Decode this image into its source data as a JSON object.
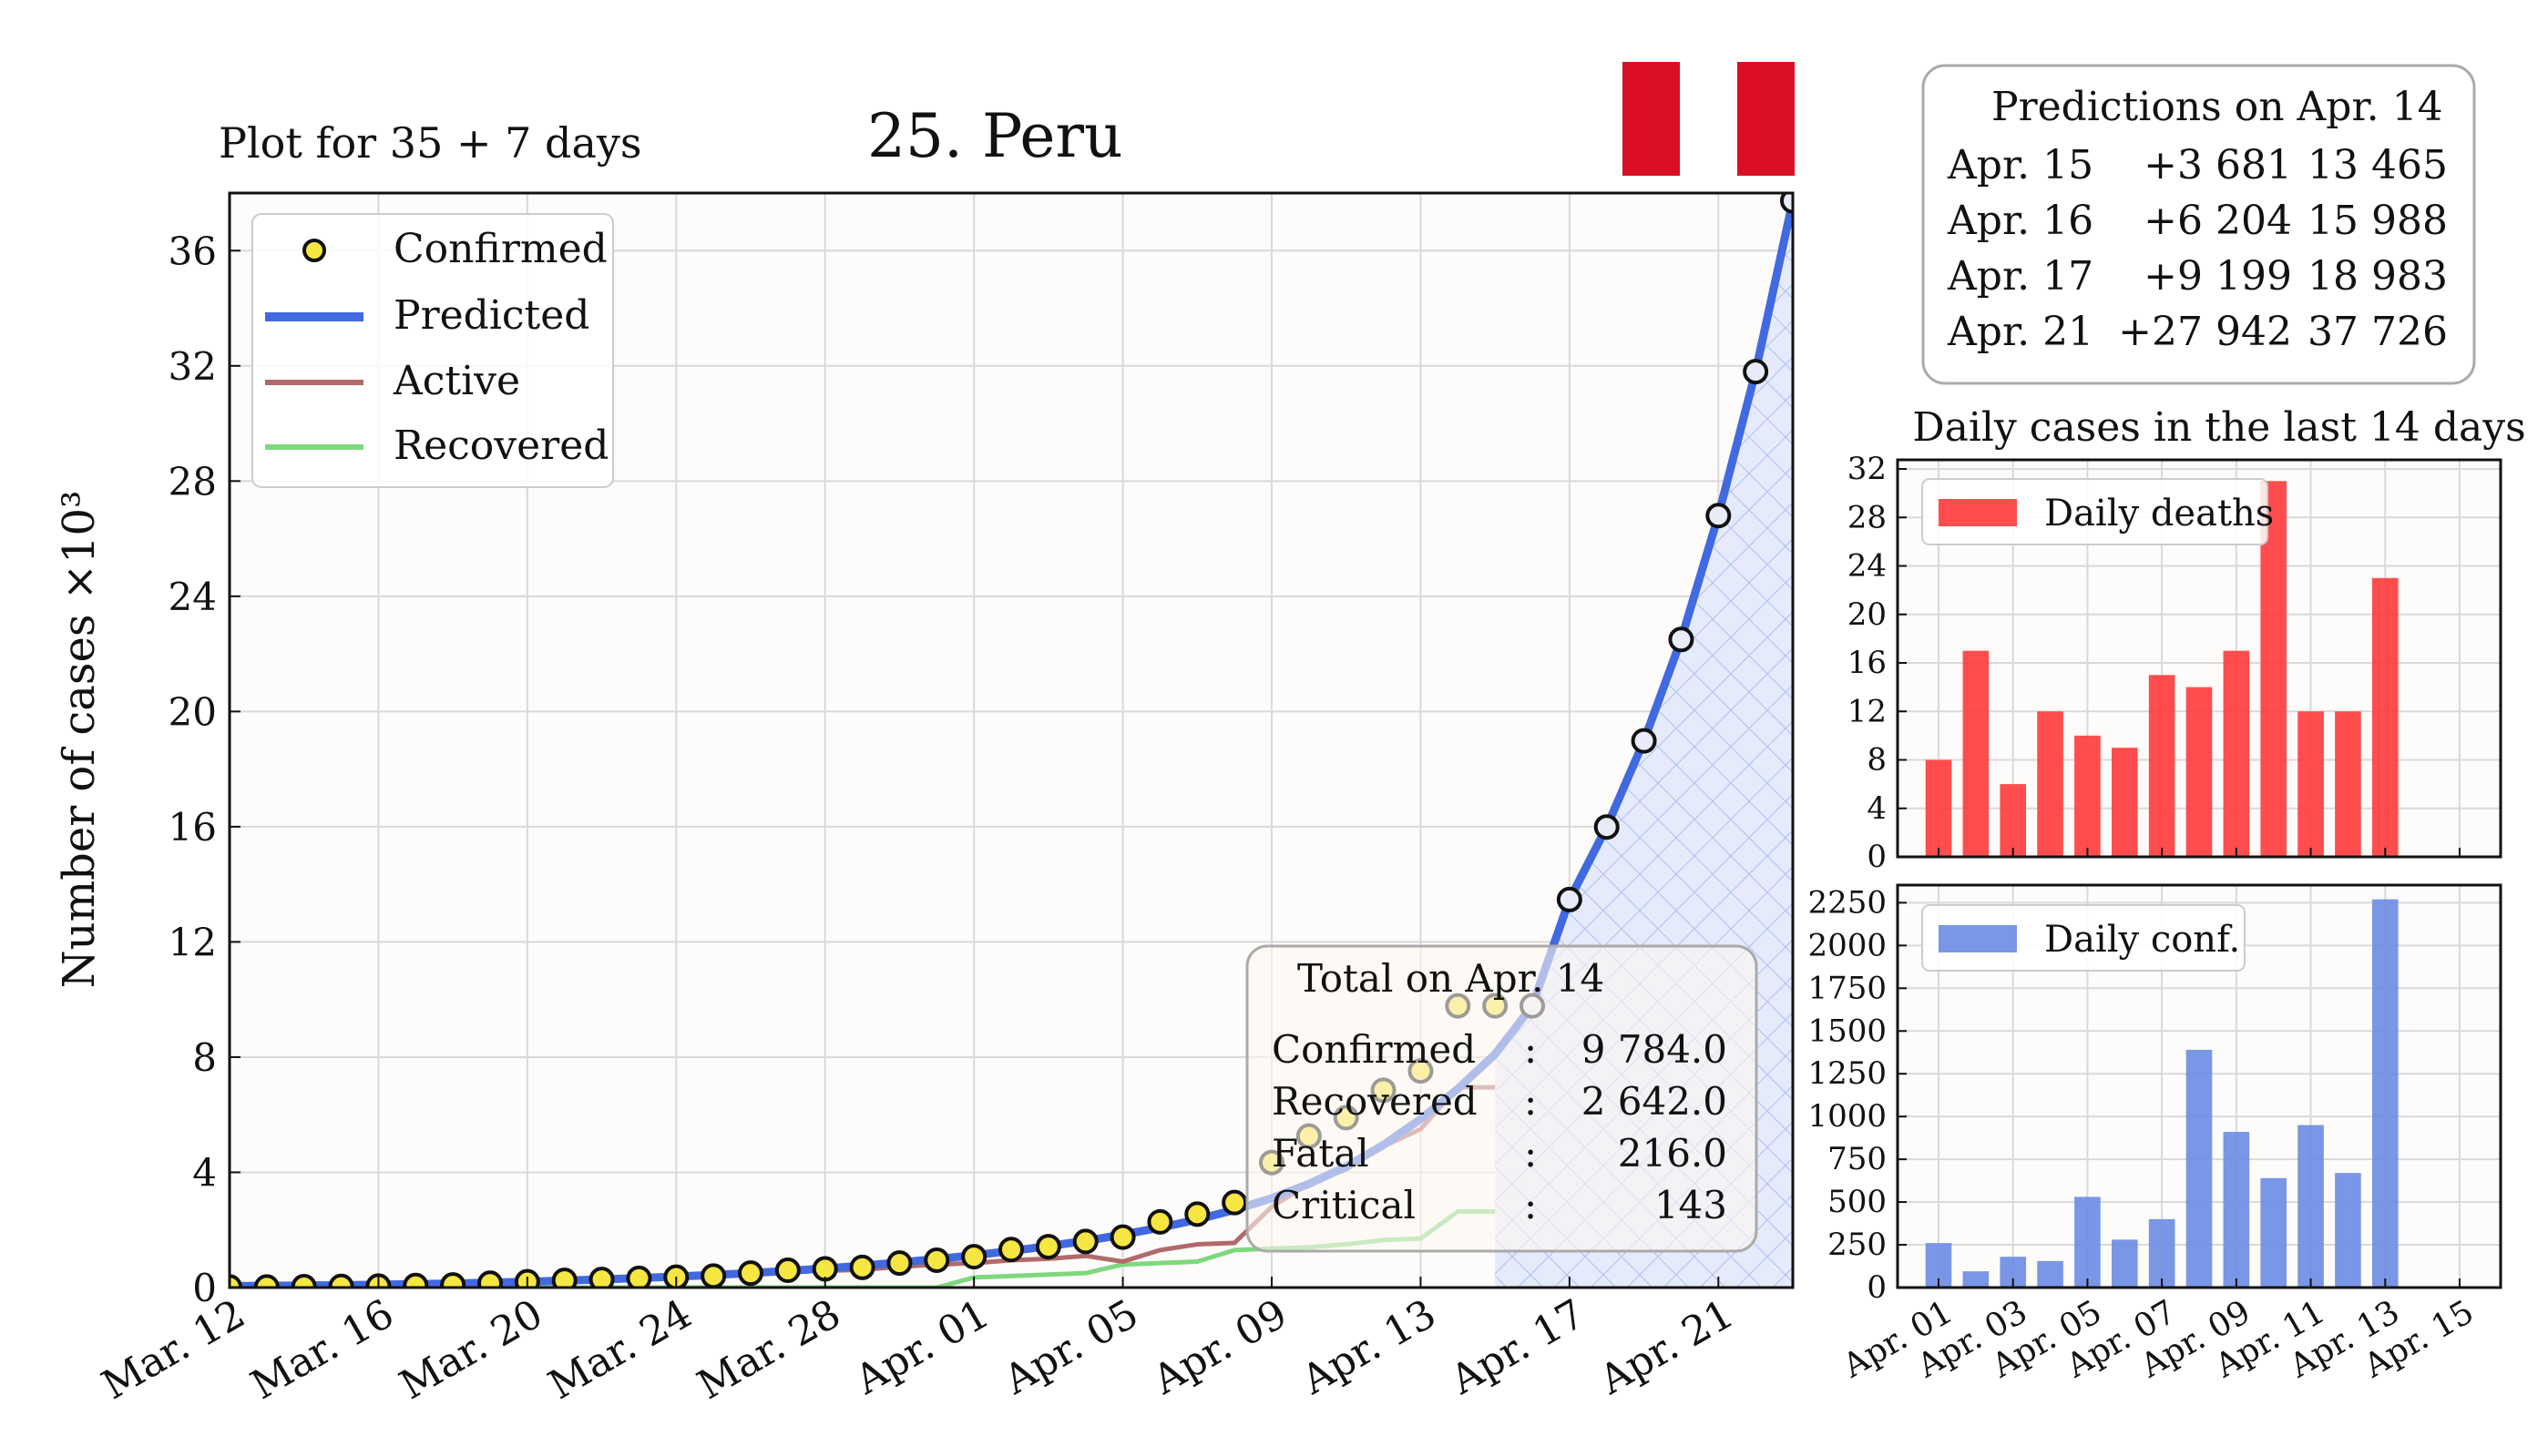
{
  "page": {
    "subtitle": "Plot for 35 + 7 days",
    "title": "25. Peru",
    "flag_colors": [
      "#d91023",
      "#ffffff",
      "#d91023"
    ]
  },
  "predictions": {
    "header": "Predictions on Apr. 14",
    "rows": [
      {
        "date": "Apr. 15",
        "delta": "+3 681",
        "total": "13 465"
      },
      {
        "date": "Apr. 16",
        "delta": "+6 204",
        "total": "15 988"
      },
      {
        "date": "Apr. 17",
        "delta": "+9 199",
        "total": "18 983"
      },
      {
        "date": "Apr. 21",
        "delta": "+27 942",
        "total": "37 726"
      }
    ]
  },
  "totals": {
    "header": "Total on Apr. 14",
    "rows": [
      {
        "label": "Confirmed",
        "sep": ":",
        "value": "9 784.0"
      },
      {
        "label": "Recovered",
        "sep": ":",
        "value": "2 642.0"
      },
      {
        "label": "Fatal",
        "sep": ":",
        "value": "216.0"
      },
      {
        "label": "Critical",
        "sep": ":",
        "value": "143"
      }
    ]
  },
  "colors": {
    "confirmed": "#f5e642",
    "predicted": "#4169e1",
    "active": "#b06a6a",
    "recovered": "#7ed87e",
    "deaths_bar": "#ff3a3a",
    "conf_bar": "#6b8be3"
  },
  "chart_data": [
    {
      "type": "line",
      "xlabel": "",
      "ylabel": "Number of cases ×10³",
      "ylim": [
        0,
        38
      ],
      "yticks": [
        "0",
        "4",
        "8",
        "12",
        "16",
        "20",
        "24",
        "28",
        "32",
        "36"
      ],
      "xticks": [
        "Mar. 12",
        "Mar. 16",
        "Mar. 20",
        "Mar. 24",
        "Mar. 28",
        "Apr. 01",
        "Apr. 05",
        "Apr. 09",
        "Apr. 13",
        "Apr. 17",
        "Apr. 21"
      ],
      "x_start": "Mar. 12",
      "legend": [
        "Confirmed",
        "Predicted",
        "Active",
        "Recovered"
      ],
      "legend_position": "top-left",
      "grid": true,
      "series": [
        {
          "name": "Confirmed",
          "values": [
            0.02,
            0.02,
            0.03,
            0.04,
            0.05,
            0.07,
            0.09,
            0.15,
            0.2,
            0.25,
            0.28,
            0.32,
            0.36,
            0.4,
            0.5,
            0.6,
            0.65,
            0.7,
            0.85,
            0.95,
            1.07,
            1.32,
            1.42,
            1.6,
            1.75,
            2.28,
            2.55,
            2.95,
            4.34,
            5.26,
            5.9,
            6.85,
            7.52,
            9.78,
            9.78
          ]
        },
        {
          "name": "Predicted",
          "values": [
            0.05,
            0.06,
            0.07,
            0.08,
            0.1,
            0.12,
            0.14,
            0.17,
            0.2,
            0.24,
            0.28,
            0.33,
            0.38,
            0.44,
            0.5,
            0.58,
            0.66,
            0.76,
            0.87,
            0.99,
            1.12,
            1.27,
            1.44,
            1.62,
            1.84,
            2.08,
            2.36,
            2.7,
            3.1,
            3.6,
            4.2,
            4.95,
            5.85,
            6.9,
            8.1,
            9.78,
            13.47,
            15.99,
            18.98,
            22.5,
            26.8,
            31.8,
            37.73
          ]
        },
        {
          "name": "Active",
          "values": [
            0.02,
            0.02,
            0.03,
            0.04,
            0.05,
            0.07,
            0.09,
            0.14,
            0.19,
            0.24,
            0.27,
            0.3,
            0.34,
            0.38,
            0.46,
            0.55,
            0.58,
            0.62,
            0.72,
            0.8,
            0.85,
            0.95,
            1.0,
            1.1,
            0.9,
            1.3,
            1.5,
            1.55,
            2.8,
            3.6,
            4.1,
            4.9,
            5.5,
            6.95,
            6.95
          ]
        },
        {
          "name": "Recovered",
          "values": [
            0,
            0,
            0,
            0,
            0,
            0,
            0,
            0,
            0,
            0,
            0,
            0,
            0,
            0,
            0,
            0,
            0,
            0,
            0,
            0,
            0.35,
            0.4,
            0.45,
            0.5,
            0.8,
            0.85,
            0.9,
            1.3,
            1.35,
            1.4,
            1.5,
            1.65,
            1.7,
            2.64,
            2.64
          ]
        }
      ]
    },
    {
      "type": "bar",
      "title": "Daily cases in the last 14 days",
      "legend": [
        "Daily deaths"
      ],
      "ylim": [
        0,
        32
      ],
      "yticks": [
        "0",
        "4",
        "8",
        "12",
        "16",
        "20",
        "24",
        "28",
        "32"
      ],
      "categories": [
        "Apr. 01",
        "Apr. 02",
        "Apr. 03",
        "Apr. 04",
        "Apr. 05",
        "Apr. 06",
        "Apr. 07",
        "Apr. 08",
        "Apr. 09",
        "Apr. 10",
        "Apr. 11",
        "Apr. 12",
        "Apr. 13"
      ],
      "values": [
        8,
        17,
        6,
        12,
        10,
        9,
        15,
        14,
        17,
        31,
        12,
        12,
        23
      ]
    },
    {
      "type": "bar",
      "legend": [
        "Daily conf."
      ],
      "ylim": [
        0,
        2300
      ],
      "yticks": [
        "0",
        "250",
        "500",
        "750",
        "1000",
        "1250",
        "1500",
        "1750",
        "2000",
        "2250"
      ],
      "xticks": [
        "Apr. 01",
        "Apr. 03",
        "Apr. 05",
        "Apr. 07",
        "Apr. 09",
        "Apr. 11",
        "Apr. 13",
        "Apr. 15"
      ],
      "categories": [
        "Apr. 01",
        "Apr. 02",
        "Apr. 03",
        "Apr. 04",
        "Apr. 05",
        "Apr. 06",
        "Apr. 07",
        "Apr. 08",
        "Apr. 09",
        "Apr. 10",
        "Apr. 11",
        "Apr. 12",
        "Apr. 13"
      ],
      "values": [
        260,
        95,
        180,
        155,
        530,
        280,
        400,
        1390,
        910,
        640,
        950,
        670,
        2270
      ]
    }
  ]
}
